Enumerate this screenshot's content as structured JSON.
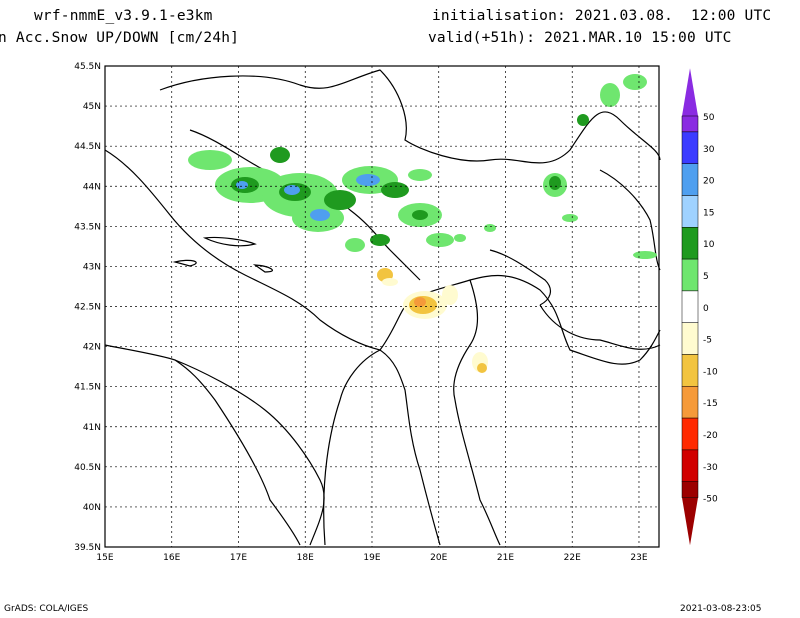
{
  "header": {
    "model": "wrf-nmmE_v3.9.1-e3km",
    "initialisation": "initialisation: 2021.03.08.  12:00 UTC",
    "field": "n Acc.Snow UP/DOWN [cm/24h]",
    "valid": "valid(+51h): 2021.MAR.10 15:00 UTC"
  },
  "map": {
    "lat_ticks": [
      "45.5N",
      "45N",
      "44.5N",
      "44N",
      "43.5N",
      "43N",
      "42.5N",
      "42N",
      "41.5N",
      "41N",
      "40.5N",
      "40N",
      "39.5N"
    ],
    "lon_ticks": [
      "15E",
      "16E",
      "17E",
      "18E",
      "19E",
      "20E",
      "21E",
      "22E",
      "23E"
    ],
    "lat_range": [
      39.5,
      45.5
    ],
    "lon_range": [
      15,
      23.3
    ],
    "grid": "dashed"
  },
  "legend": {
    "labels": [
      "50",
      "30",
      "20",
      "15",
      "10",
      "5",
      "0",
      "-5",
      "-10",
      "-15",
      "-20",
      "-30",
      "-50"
    ],
    "colors": [
      "#8a2be2",
      "#3b3bff",
      "#4f9fef",
      "#9fd2ff",
      "#1f9a1f",
      "#6fe66f",
      "#ffffff",
      "#fffbd0",
      "#f2c440",
      "#f59a3a",
      "#ff2a00",
      "#d10000",
      "#9c0000"
    ]
  },
  "footer": {
    "left": "GrADS: COLA/IGES",
    "right": "2021-03-08-23:05"
  }
}
